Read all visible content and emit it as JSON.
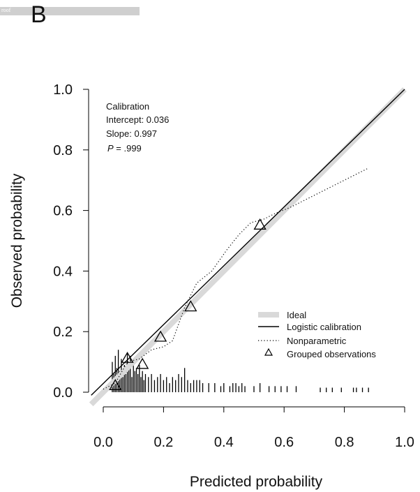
{
  "header": {
    "watermark_text": "roof",
    "panel_label": "B"
  },
  "chart_data": {
    "type": "line",
    "xlabel": "Predicted probability",
    "ylabel": "Observed probability",
    "xlim": [
      -0.04,
      1.0
    ],
    "ylim": [
      -0.04,
      1.0
    ],
    "x_ticks": [
      "0.0",
      "0.2",
      "0.4",
      "0.6",
      "0.8",
      "1.0"
    ],
    "y_ticks": [
      "0.0",
      "0.2",
      "0.4",
      "0.6",
      "0.8",
      "1.0"
    ],
    "stats": {
      "heading": "Calibration",
      "intercept": "Intercept: 0.036",
      "slope": "Slope: 0.997",
      "p_label": "P",
      "p_value": " = .999"
    },
    "legend": {
      "position": "bottom-right",
      "items": [
        "Ideal",
        "Logistic calibration",
        "Nonparametric",
        "Grouped observations"
      ]
    },
    "series": [
      {
        "name": "Ideal",
        "x": [
          -0.04,
          1.0
        ],
        "y": [
          -0.04,
          1.0
        ],
        "color": "#d9d9d9"
      },
      {
        "name": "Logistic calibration",
        "x": [
          -0.04,
          1.0
        ],
        "y": [
          -0.01,
          1.0
        ],
        "color": "#000000"
      },
      {
        "name": "Nonparametric",
        "x": [
          0.0,
          0.04,
          0.08,
          0.12,
          0.16,
          0.2,
          0.23,
          0.27,
          0.31,
          0.36,
          0.41,
          0.45,
          0.49,
          0.53,
          0.57,
          0.62,
          0.68,
          0.74,
          0.8,
          0.88
        ],
        "y": [
          0.01,
          0.03,
          0.1,
          0.11,
          0.14,
          0.15,
          0.17,
          0.28,
          0.36,
          0.4,
          0.47,
          0.52,
          0.56,
          0.57,
          0.59,
          0.61,
          0.64,
          0.67,
          0.7,
          0.74
        ],
        "color": "#000000"
      },
      {
        "name": "Grouped observations",
        "x": [
          0.04,
          0.08,
          0.13,
          0.19,
          0.29,
          0.52
        ],
        "y": [
          0.02,
          0.11,
          0.09,
          0.18,
          0.28,
          0.55
        ],
        "color": "#000000"
      }
    ],
    "distribution_ticks": {
      "x": [
        0.03,
        0.035,
        0.04,
        0.045,
        0.05,
        0.055,
        0.06,
        0.065,
        0.07,
        0.075,
        0.08,
        0.085,
        0.09,
        0.095,
        0.1,
        0.105,
        0.11,
        0.115,
        0.12,
        0.125,
        0.13,
        0.135,
        0.14,
        0.15,
        0.16,
        0.17,
        0.18,
        0.19,
        0.2,
        0.21,
        0.22,
        0.23,
        0.24,
        0.25,
        0.26,
        0.27,
        0.28,
        0.29,
        0.3,
        0.31,
        0.32,
        0.33,
        0.35,
        0.37,
        0.39,
        0.4,
        0.42,
        0.43,
        0.44,
        0.45,
        0.46,
        0.47,
        0.5,
        0.52,
        0.55,
        0.57,
        0.59,
        0.61,
        0.64,
        0.72,
        0.74,
        0.76,
        0.79,
        0.83,
        0.84,
        0.86,
        0.88
      ],
      "h": [
        0.1,
        0.06,
        0.12,
        0.08,
        0.14,
        0.07,
        0.11,
        0.05,
        0.09,
        0.06,
        0.13,
        0.08,
        0.12,
        0.05,
        0.1,
        0.07,
        0.08,
        0.06,
        0.09,
        0.05,
        0.07,
        0.04,
        0.06,
        0.05,
        0.06,
        0.04,
        0.05,
        0.06,
        0.04,
        0.05,
        0.03,
        0.05,
        0.04,
        0.06,
        0.05,
        0.08,
        0.04,
        0.03,
        0.04,
        0.04,
        0.04,
        0.03,
        0.03,
        0.03,
        0.02,
        0.03,
        0.02,
        0.03,
        0.03,
        0.02,
        0.03,
        0.02,
        0.02,
        0.03,
        0.02,
        0.02,
        0.02,
        0.02,
        0.02,
        0.015,
        0.015,
        0.015,
        0.015,
        0.015,
        0.015,
        0.015,
        0.015
      ]
    },
    "grid": false
  }
}
